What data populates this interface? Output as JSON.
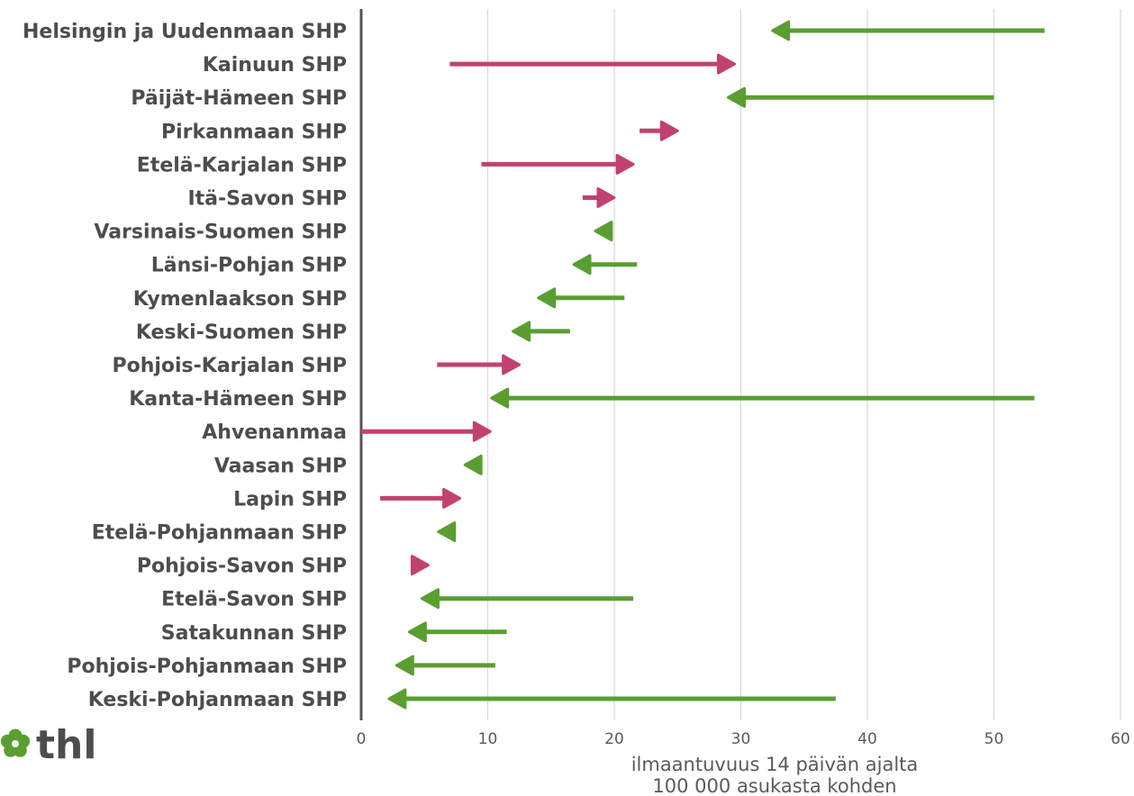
{
  "chart_data": {
    "type": "arrow",
    "xlabel_line1": "ilmaantuvuus 14 päivän ajalta",
    "xlabel_line2": "100 000 asukasta kohden",
    "xlim": [
      0,
      60
    ],
    "xticks": [
      "0",
      "10",
      "20",
      "30",
      "40",
      "50",
      "60"
    ],
    "grid": true,
    "colors": {
      "increase": "#c2426f",
      "decrease": "#5a9e32"
    },
    "items": [
      {
        "label": "Helsingin ja Uudenmaan SHP",
        "from": 54.0,
        "to": 32.5
      },
      {
        "label": "Kainuun SHP",
        "from": 7.0,
        "to": 29.5
      },
      {
        "label": "Päijät-Hämeen SHP",
        "from": 50.0,
        "to": 29.0
      },
      {
        "label": "Pirkanmaan SHP",
        "from": 22.0,
        "to": 25.0
      },
      {
        "label": "Etelä-Karjalan SHP",
        "from": 9.5,
        "to": 21.5
      },
      {
        "label": "Itä-Savon SHP",
        "from": 17.5,
        "to": 20.0
      },
      {
        "label": "Varsinais-Suomen SHP",
        "from": 19.5,
        "to": 18.5
      },
      {
        "label": "Länsi-Pohjan SHP",
        "from": 21.8,
        "to": 16.8
      },
      {
        "label": "Kymenlaakson SHP",
        "from": 20.8,
        "to": 14.0
      },
      {
        "label": "Keski-Suomen SHP",
        "from": 16.5,
        "to": 12.0
      },
      {
        "label": "Pohjois-Karjalan SHP",
        "from": 6.0,
        "to": 12.5
      },
      {
        "label": "Kanta-Hämeen SHP",
        "from": 53.2,
        "to": 10.3
      },
      {
        "label": "Ahvenanmaa",
        "from": 0.0,
        "to": 10.2
      },
      {
        "label": "Vaasan SHP",
        "from": 9.2,
        "to": 8.2
      },
      {
        "label": "Lapin SHP",
        "from": 1.5,
        "to": 7.8
      },
      {
        "label": "Etelä-Pohjanmaan SHP",
        "from": 7.2,
        "to": 6.1
      },
      {
        "label": "Pohjois-Savon SHP",
        "from": 4.2,
        "to": 5.3
      },
      {
        "label": "Etelä-Savon SHP",
        "from": 21.5,
        "to": 4.8
      },
      {
        "label": "Satakunnan SHP",
        "from": 11.5,
        "to": 3.8
      },
      {
        "label": "Pohjois-Pohjanmaan SHP",
        "from": 10.6,
        "to": 2.8
      },
      {
        "label": "Keski-Pohjanmaan SHP",
        "from": 37.5,
        "to": 2.2
      }
    ]
  },
  "logo": {
    "text": "thl",
    "icon": "thl-flower-icon"
  }
}
